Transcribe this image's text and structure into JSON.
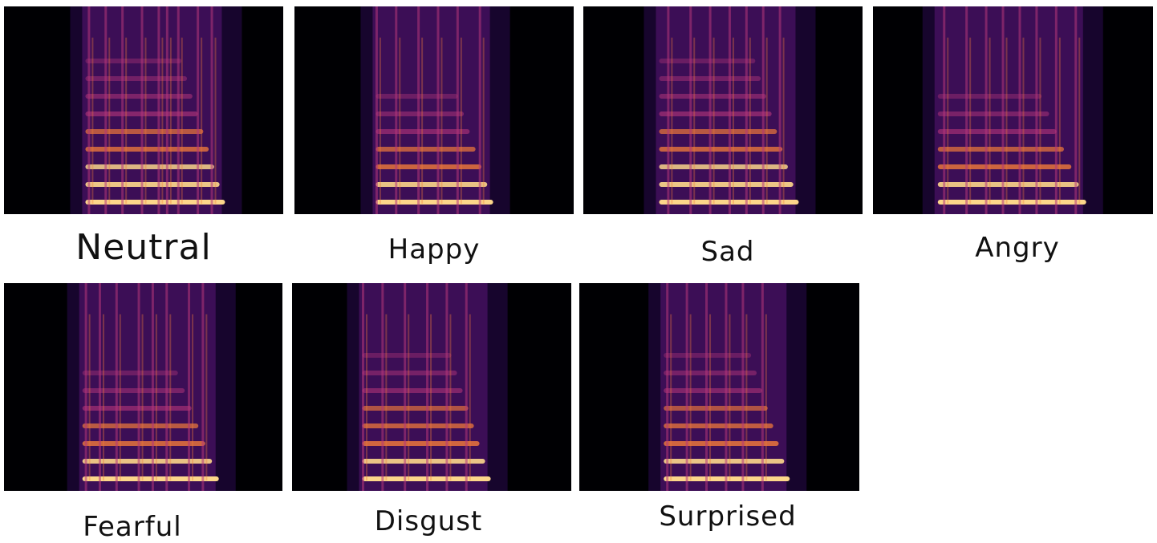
{
  "panels": [
    {
      "id": "neutral",
      "label": "Neutral"
    },
    {
      "id": "happy",
      "label": "Happy"
    },
    {
      "id": "sad",
      "label": "Sad"
    },
    {
      "id": "angry",
      "label": "Angry"
    },
    {
      "id": "fearful",
      "label": "Fearful"
    },
    {
      "id": "disgust",
      "label": "Disgust"
    },
    {
      "id": "surprised",
      "label": "Surprised"
    }
  ],
  "colors": {
    "background": "#000003",
    "dark_purple": "#2a0a50",
    "purple": "#6a1a8a",
    "magenta": "#b5367a",
    "orange": "#f07a3a",
    "yellow": "#fcd68a",
    "caption_text": "#111111"
  }
}
